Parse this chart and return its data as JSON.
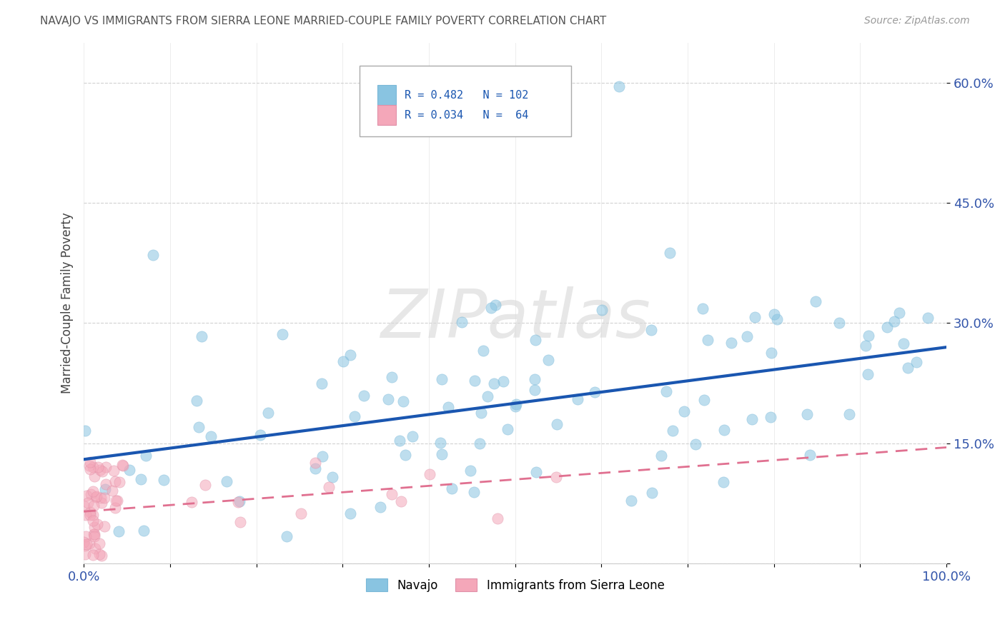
{
  "title": "NAVAJO VS IMMIGRANTS FROM SIERRA LEONE MARRIED-COUPLE FAMILY POVERTY CORRELATION CHART",
  "source": "Source: ZipAtlas.com",
  "ylabel": "Married-Couple Family Poverty",
  "xlim": [
    0.0,
    1.0
  ],
  "ylim": [
    0.0,
    0.65
  ],
  "xticks": [
    0.0,
    0.1,
    0.2,
    0.3,
    0.4,
    0.5,
    0.6,
    0.7,
    0.8,
    0.9,
    1.0
  ],
  "xticklabels": [
    "0.0%",
    "",
    "",
    "",
    "",
    "",
    "",
    "",
    "",
    "",
    "100.0%"
  ],
  "yticks": [
    0.0,
    0.15,
    0.3,
    0.45,
    0.6
  ],
  "yticklabels_right": [
    "",
    "15.0%",
    "30.0%",
    "45.0%",
    "60.0%"
  ],
  "navajo_color": "#89c4e1",
  "sierra_leone_color": "#f4a7b9",
  "navajo_line_color": "#1a56b0",
  "sierra_leone_line_color": "#e07090",
  "background_color": "#ffffff",
  "grid_color": "#cccccc",
  "watermark": "ZIPatlas",
  "navajo_line_x0": 0.0,
  "navajo_line_y0": 0.13,
  "navajo_line_x1": 1.0,
  "navajo_line_y1": 0.27,
  "sierra_line_x0": 0.0,
  "sierra_line_y0": 0.065,
  "sierra_line_x1": 1.0,
  "sierra_line_y1": 0.145
}
